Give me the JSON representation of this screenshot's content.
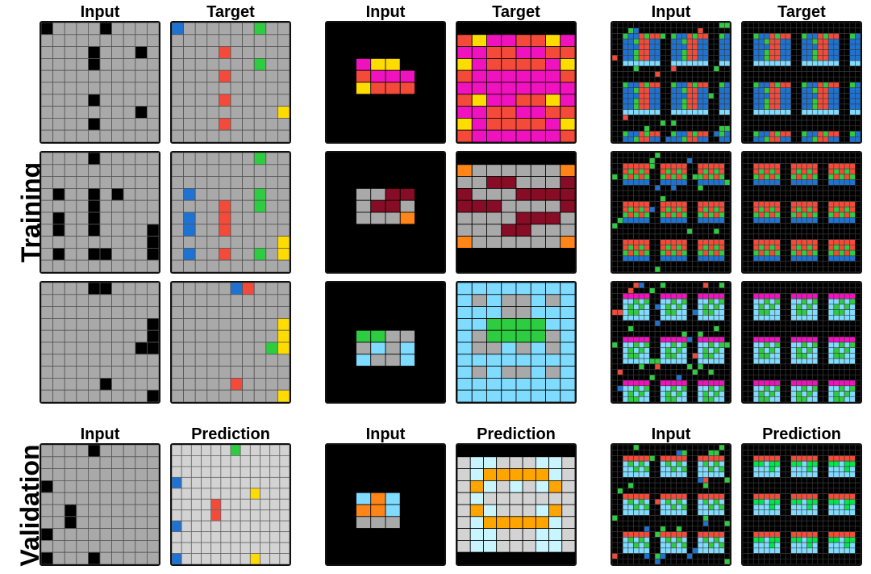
{
  "labels": {
    "training": "Training",
    "validation": "Validation",
    "input": "Input",
    "target": "Target",
    "prediction": "Prediction"
  },
  "colors": {
    "0": "#000000",
    "1": "#1e73d2",
    "2": "#f34a3a",
    "3": "#2ecc40",
    "4": "#ffdc00",
    "5": "#a9a9a9",
    "6": "#f012be",
    "7": "#ff8518",
    "8": "#7fdbff",
    "9": "#870c25",
    "b": "#d3d3d3",
    "a": "#ffa500",
    "c": "#c8f5ff",
    "g": "#00e64d"
  },
  "tasks": [
    {
      "train": [
        {
          "input": [
            "0555505555",
            "5555555555",
            "5555055505",
            "5555055555",
            "5555555555",
            "5555555555",
            "5555055555",
            "5555555505",
            "5555055555",
            "5555555555"
          ],
          "target": [
            "1555555355",
            "5555555555",
            "5555255555",
            "5555555355",
            "5555255555",
            "5555555555",
            "5555255555",
            "5555555554",
            "5555255555",
            "5555555555"
          ]
        },
        {
          "input": [
            "5555055555",
            "5555555555",
            "5555555555",
            "5055050555",
            "5555055555",
            "5055055555",
            "5055055550",
            "5555555550",
            "5055005550",
            "5555555555"
          ],
          "target": [
            "5555555355",
            "5555555555",
            "5555555555",
            "5155555355",
            "5555255355",
            "5155255555",
            "5155255555",
            "5555555554",
            "5155255354",
            "5555555555"
          ]
        },
        {
          "input": [
            "5555005555",
            "5555555555",
            "5555555555",
            "5555555550",
            "5555555550",
            "5555555500",
            "5555555555",
            "5555555555",
            "5555505555",
            "5555555550"
          ],
          "target": [
            "5555512555",
            "5555555555",
            "5555555555",
            "5555555554",
            "5555555554",
            "5555555534",
            "5555555555",
            "5555555555",
            "5555525555",
            "5555555554"
          ]
        }
      ],
      "test": {
        "input": [
          "5555055555",
          "5555555555",
          "5555555555",
          "0555555555",
          "5555555555",
          "5505555555",
          "5505555555",
          "0555555555",
          "5555555555",
          "0555055555"
        ],
        "prediction": [
          "bbbbbb3bbbbb",
          "bbbbbbbbbbbb",
          "bbbbbbbbbbbb",
          "1bbbbbbbbbbb",
          "bbbbbbbb4bbb",
          "bbbb2bbbbbbb",
          "bbbb2bbbbbbb",
          "1bbbbbbbbbbb",
          "bbbbbbbbbbbb",
          "bbbbbbbbbbbb",
          "1bbbbbbb4bbb"
        ]
      }
    },
    {
      "train": [
        {
          "input": [
            "00000000",
            "00000000",
            "00000000",
            "00644000",
            "00266600",
            "00422200",
            "00000000",
            "00000000",
            "00000000",
            "00000000"
          ],
          "target": [
            "00000000",
            "24662246",
            "66226622",
            "46222264",
            "26666662",
            "66666666",
            "24662246",
            "66226622",
            "46222264",
            "26666662"
          ]
        },
        {
          "input": [
            "00000000",
            "00000000",
            "00000000",
            "00559900",
            "00599500",
            "00555700",
            "00000000",
            "00000000",
            "00000000",
            "00000000"
          ],
          "target": [
            "00000000",
            "75555557",
            "55995559",
            "95559999",
            "99955559",
            "55559995",
            "55599555",
            "75555557",
            "00000000",
            "00000000"
          ]
        },
        {
          "input": [
            "00000000",
            "00000000",
            "00000000",
            "00000000",
            "00335500",
            "00585800",
            "00855800",
            "00000000",
            "00000000",
            "00000000"
          ],
          "target": [
            "88888888",
            "85855858",
            "88855888",
            "88333388",
            "85333358",
            "85585858",
            "88888888",
            "85855858",
            "88888888",
            "88888888"
          ]
        }
      ],
      "test": {
        "input": [
          "00000000",
          "00000000",
          "00000000",
          "00000000",
          "00878000",
          "00778000",
          "00555000",
          "00000000",
          "00000000",
          "00000000"
        ],
        "prediction": [
          "000000000",
          "bccbbbccb",
          "bcaaaaacb",
          "bacbcbcab",
          "bcbbbbbbb",
          "bacbbbcab",
          "bcaaaaacb",
          "bccbbbccb",
          "bccbbbccb",
          "000000000"
        ]
      }
    },
    {
      "size": 22,
      "train": [
        {
          "input_tile": "bgR",
          "target_tile": "bgR",
          "input_noise": 3,
          "target_noise": 0
        },
        {
          "input_tile": "rgb",
          "target_tile": "rgb",
          "input_noise": 2,
          "target_noise": 0
        },
        {
          "input_tile": "mgc",
          "target_tile": "mgc",
          "input_noise": 4,
          "target_noise": 0
        }
      ],
      "test": {
        "input_tile": "rgc",
        "prediction_tile": "rGc",
        "input_noise": 5,
        "prediction_noise": 0
      }
    }
  ]
}
